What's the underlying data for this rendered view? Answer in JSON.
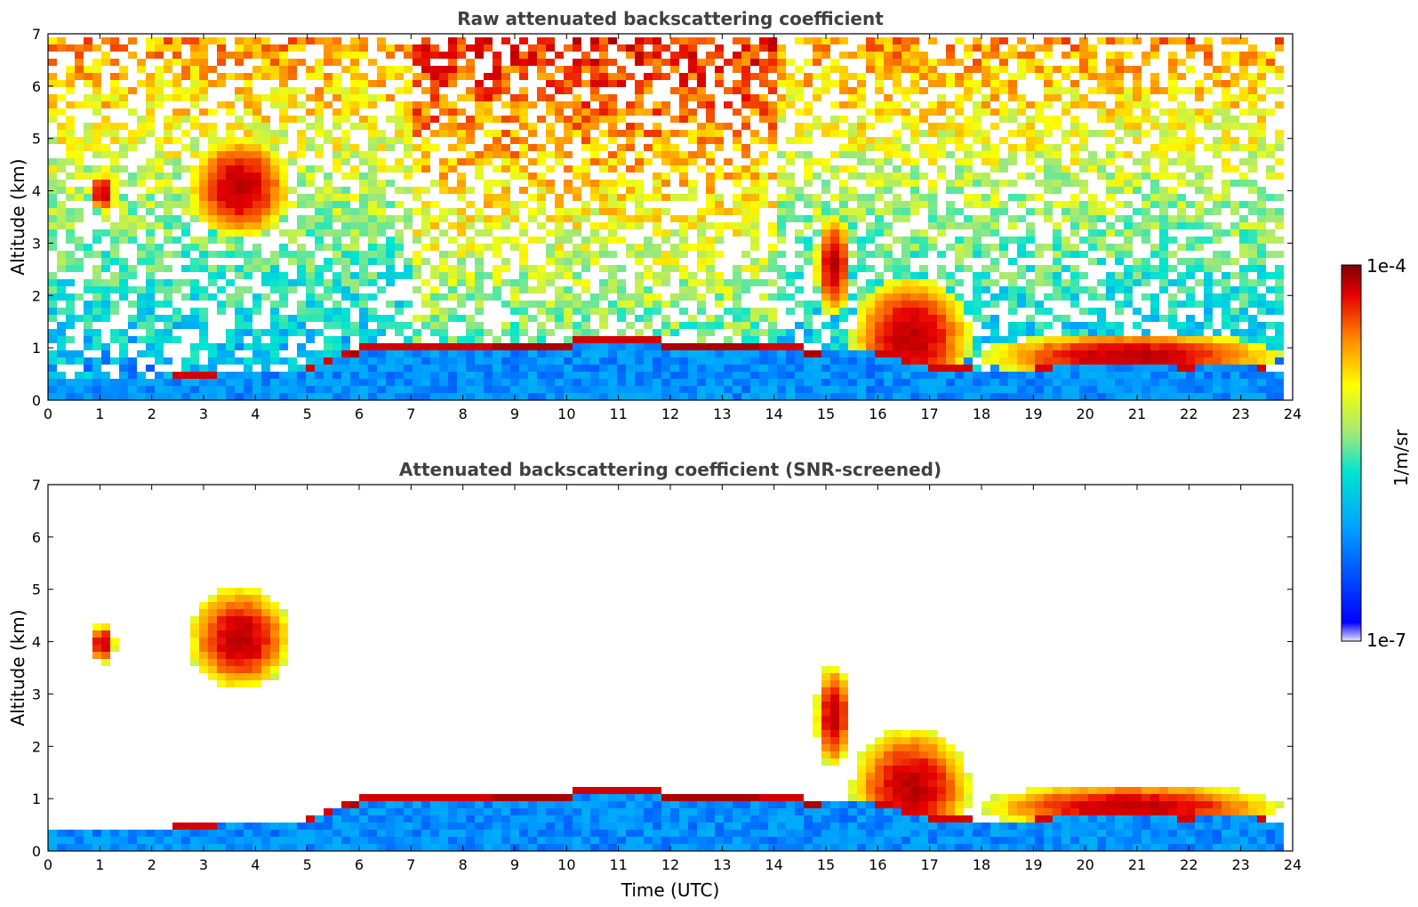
{
  "chart_data": [
    {
      "type": "heatmap",
      "title": "Raw attenuated backscattering coefficient",
      "xlabel": "",
      "ylabel": "Altitude (km)",
      "xlim": [
        0,
        24
      ],
      "ylim": [
        0,
        7
      ],
      "xticks": [
        0,
        1,
        2,
        3,
        4,
        5,
        6,
        7,
        8,
        9,
        10,
        11,
        12,
        13,
        14,
        15,
        16,
        17,
        18,
        19,
        20,
        21,
        22,
        23,
        24
      ],
      "yticks": [
        0,
        1,
        2,
        3,
        4,
        5,
        6,
        7
      ],
      "screened": false,
      "features": [
        {
          "name": "aerosol_layer",
          "time_hours": [
            0,
            24
          ],
          "top_km": [
            0.35,
            0.4,
            0.4,
            0.45,
            0.55,
            0.55,
            1.0,
            1.0,
            1.0,
            1.05,
            1.1,
            1.15,
            1.1,
            1.1,
            1.0,
            0.95,
            0.9,
            0.6,
            0.55,
            0.55,
            0.7,
            0.7,
            0.6,
            0.7,
            0.45
          ]
        },
        {
          "name": "boundary_layer_top",
          "points": [
            [
              6.1,
              1.0
            ],
            [
              7,
              0.95
            ],
            [
              8,
              0.8
            ],
            [
              9,
              0.85
            ],
            [
              9.2,
              1.1
            ],
            [
              10,
              1.15
            ],
            [
              11,
              1.1
            ],
            [
              12,
              1.1
            ],
            [
              13,
              1.0
            ],
            [
              14,
              0.95
            ],
            [
              14.9,
              0.95
            ]
          ]
        },
        {
          "name": "cirrus_cloud",
          "t_range": [
            0.8,
            1.3
          ],
          "z_range": [
            3.6,
            4.4
          ]
        },
        {
          "name": "cirrus_cloud",
          "t_range": [
            2.7,
            4.7
          ],
          "z_range": [
            3.1,
            5.1
          ]
        },
        {
          "name": "descending_cloud",
          "t_range": [
            14.8,
            15.5
          ],
          "z_range": [
            1.6,
            3.6
          ]
        },
        {
          "name": "precipitating_cloud",
          "t_range": [
            15.5,
            17.8
          ],
          "z_range": [
            0,
            2.4
          ]
        },
        {
          "name": "low_cloud_layer",
          "t_range": [
            18,
            23.8
          ],
          "z_range": [
            0.4,
            1.3
          ]
        }
      ]
    },
    {
      "type": "heatmap",
      "title": "Attenuated backscattering coefficient (SNR-screened)",
      "xlabel": "Time (UTC)",
      "ylabel": "Altitude (km)",
      "xlim": [
        0,
        24
      ],
      "ylim": [
        0,
        7
      ],
      "xticks": [
        0,
        1,
        2,
        3,
        4,
        5,
        6,
        7,
        8,
        9,
        10,
        11,
        12,
        13,
        14,
        15,
        16,
        17,
        18,
        19,
        20,
        21,
        22,
        23,
        24
      ],
      "yticks": [
        0,
        1,
        2,
        3,
        4,
        5,
        6,
        7
      ],
      "screened": true
    }
  ],
  "colorbar": {
    "label": "1/m/sr",
    "min_label": "1e-7",
    "max_label": "1e-4",
    "scale": "log",
    "colormap": [
      "#e6e6f5",
      "#0000ff",
      "#00a0ff",
      "#00e5d0",
      "#9fe87a",
      "#ffff00",
      "#ff8c00",
      "#e60000",
      "#800000"
    ]
  }
}
